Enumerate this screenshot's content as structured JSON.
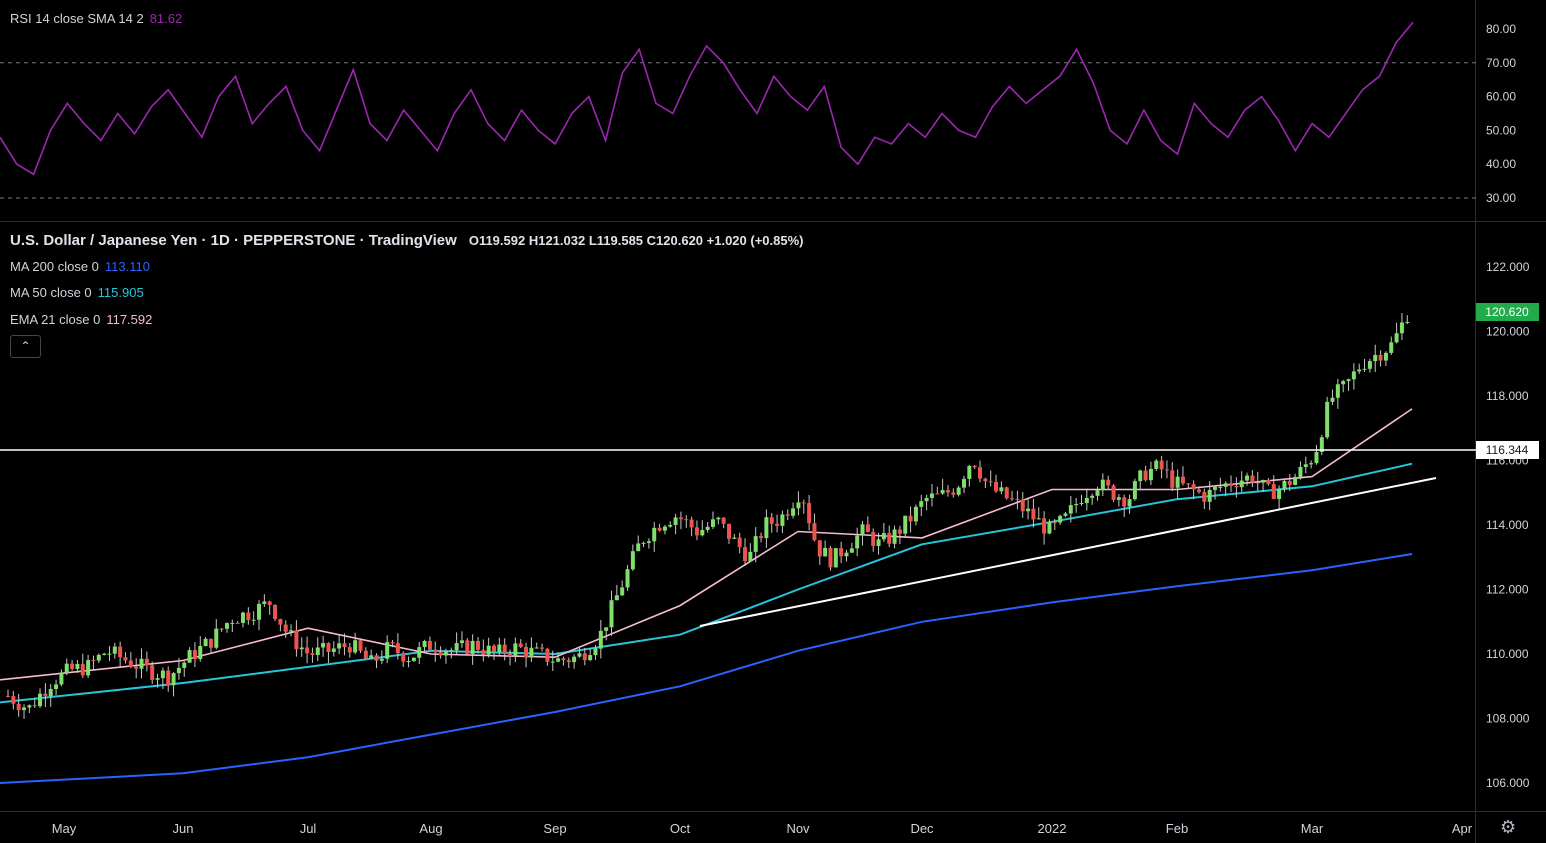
{
  "rsi": {
    "label": "RSI 14 close SMA 14 2",
    "value": "81.62",
    "color": "#9c27b0",
    "levels": [
      30,
      70
    ],
    "axis_ticks": [
      "80.00",
      "70.00",
      "60.00",
      "50.00",
      "40.00",
      "30.00"
    ]
  },
  "main": {
    "symbol": "U.S. Dollar / Japanese Yen · 1D · PEPPERSTONE · TradingView",
    "ohlc": "O119.592  H121.032  L119.585  C120.620  +1.020 (+0.85%)",
    "price_axis_ticks": [
      "122.000",
      "120.000",
      "118.000",
      "116.000",
      "114.000",
      "112.000",
      "110.000",
      "108.000",
      "106.000"
    ],
    "last_price": "120.620",
    "hline_price": "116.344",
    "colors": {
      "up": "#26a69a",
      "up_body": "#7ee06a",
      "down": "#ef5350",
      "line_hl": "#ffffff",
      "last_price_bg": "#22ab4a"
    }
  },
  "indicators": {
    "ma200": {
      "label": "MA 200 close 0",
      "value": "113.110",
      "color": "#2962ff"
    },
    "ma50": {
      "label": "MA 50 close 0",
      "value": "115.905",
      "color": "#26c6da"
    },
    "ema21": {
      "label": "EMA 21 close 0",
      "value": "117.592",
      "color": "#f8bbd0"
    }
  },
  "time_axis": [
    "May",
    "Jun",
    "Jul",
    "Aug",
    "Sep",
    "Oct",
    "Nov",
    "Dec",
    "2022",
    "Feb",
    "Mar",
    "Apr"
  ],
  "chart_data": {
    "type": "line",
    "title": "U.S. Dollar / Japanese Yen · 1D · PEPPERSTONE · TradingView",
    "x": [
      "May",
      "Jun",
      "Jul",
      "Aug",
      "Sep",
      "Oct",
      "Nov",
      "Dec",
      "2022",
      "Feb",
      "Mar",
      "Apr"
    ],
    "ylim": [
      105.5,
      123.2
    ],
    "series": [
      {
        "name": "MA 200 close 0",
        "values": [
          106.0,
          106.3,
          106.8,
          107.5,
          108.2,
          109.0,
          110.1,
          111.0,
          111.6,
          112.1,
          112.6,
          113.1
        ]
      },
      {
        "name": "MA 50 close 0",
        "values": [
          108.5,
          109.1,
          109.6,
          110.1,
          110.0,
          110.6,
          112.0,
          113.4,
          114.1,
          114.8,
          115.2,
          115.9
        ]
      },
      {
        "name": "EMA 21 close 0",
        "values": [
          109.2,
          109.8,
          110.8,
          110.0,
          109.9,
          111.5,
          113.8,
          113.6,
          115.1,
          115.1,
          115.5,
          117.6
        ]
      }
    ],
    "close_path": [
      [
        0,
        108.7
      ],
      [
        8,
        108.3
      ],
      [
        16,
        109.1
      ],
      [
        24,
        109.5
      ],
      [
        31,
        109.6
      ],
      [
        38,
        110.1
      ],
      [
        46,
        109.8
      ],
      [
        54,
        109.5
      ],
      [
        62,
        109.3
      ],
      [
        70,
        109.9
      ],
      [
        78,
        110.4
      ],
      [
        86,
        111.1
      ],
      [
        94,
        111.3
      ],
      [
        101,
        111.6
      ],
      [
        108,
        110.6
      ],
      [
        116,
        110.0
      ],
      [
        124,
        110.1
      ],
      [
        132,
        110.3
      ],
      [
        140,
        109.7
      ],
      [
        147,
        110.2
      ],
      [
        155,
        109.9
      ],
      [
        163,
        110.3
      ],
      [
        172,
        110.1
      ],
      [
        180,
        110.3
      ],
      [
        188,
        110.0
      ],
      [
        196,
        110.2
      ],
      [
        204,
        110.0
      ],
      [
        212,
        109.8
      ],
      [
        220,
        109.9
      ],
      [
        228,
        110.5
      ],
      [
        236,
        112.0
      ],
      [
        244,
        113.5
      ],
      [
        252,
        114.1
      ],
      [
        258,
        114.3
      ],
      [
        266,
        113.8
      ],
      [
        274,
        114.1
      ],
      [
        280,
        113.5
      ],
      [
        286,
        113.0
      ],
      [
        292,
        114.0
      ],
      [
        298,
        114.2
      ],
      [
        306,
        115.1
      ],
      [
        312,
        113.3
      ],
      [
        318,
        112.9
      ],
      [
        324,
        113.4
      ],
      [
        330,
        113.8
      ],
      [
        336,
        113.4
      ],
      [
        342,
        113.7
      ],
      [
        348,
        114.2
      ],
      [
        354,
        114.8
      ],
      [
        360,
        114.9
      ],
      [
        366,
        115.2
      ],
      [
        372,
        116.1
      ],
      [
        378,
        115.2
      ],
      [
        384,
        114.9
      ],
      [
        390,
        114.6
      ],
      [
        396,
        114.2
      ],
      [
        402,
        113.8
      ],
      [
        408,
        114.2
      ],
      [
        414,
        114.9
      ],
      [
        420,
        115.3
      ],
      [
        426,
        115.0
      ],
      [
        432,
        114.8
      ],
      [
        438,
        115.6
      ],
      [
        444,
        115.8
      ],
      [
        450,
        115.3
      ],
      [
        456,
        115.1
      ],
      [
        462,
        114.9
      ],
      [
        468,
        115.2
      ],
      [
        474,
        115.4
      ],
      [
        480,
        115.5
      ],
      [
        486,
        115.0
      ],
      [
        492,
        115.2
      ],
      [
        498,
        115.6
      ],
      [
        504,
        116.2
      ],
      [
        510,
        117.9
      ],
      [
        516,
        118.3
      ],
      [
        522,
        119.0
      ],
      [
        528,
        119.3
      ],
      [
        534,
        119.6
      ],
      [
        540,
        120.6
      ]
    ]
  }
}
